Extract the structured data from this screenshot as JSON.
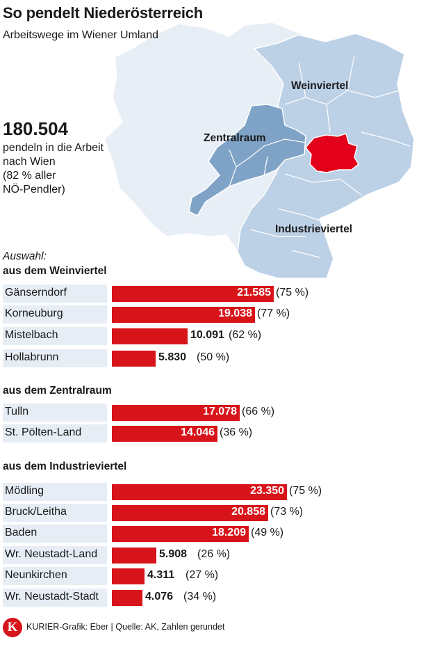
{
  "header": {
    "title": "So pendelt Niederösterreich",
    "subtitle": "Arbeitswege im Wiener Umland"
  },
  "map": {
    "labels": {
      "weinviertel": "Weinviertel",
      "zentralraum": "Zentralraum",
      "industrieviertel": "Industrieviertel"
    },
    "colors": {
      "background_region": "#e8eef6",
      "commuter_region": "#bcd0e6",
      "zentralraum": "#7fa3c6",
      "wien": "#e2001a",
      "border": "#ffffff"
    }
  },
  "summary": {
    "total": "180.504",
    "lines": [
      "pendeln in die Arbeit",
      "nach Wien",
      "(82 % aller",
      "NÖ-Pendler)"
    ]
  },
  "selection_label": "Auswahl:",
  "chart_data": {
    "type": "bar",
    "orientation": "horizontal",
    "bar_color": "#d7141a",
    "groups": [
      {
        "title": "aus dem Weinviertel",
        "rows": [
          {
            "name": "Gänserndorf",
            "value": 21585,
            "value_label": "21.585",
            "pct_label": "(75 %)"
          },
          {
            "name": "Korneuburg",
            "value": 19038,
            "value_label": "19.038",
            "pct_label": "(77 %)"
          },
          {
            "name": "Mistelbach",
            "value": 10091,
            "value_label": "10.091",
            "pct_label": "(62 %)"
          },
          {
            "name": "Hollabrunn",
            "value": 5830,
            "value_label": "5.830",
            "pct_label": "(50 %)"
          }
        ]
      },
      {
        "title": "aus dem Zentralraum",
        "rows": [
          {
            "name": "Tulln",
            "value": 17078,
            "value_label": "17.078",
            "pct_label": "(66 %)"
          },
          {
            "name": "St. Pölten-Land",
            "value": 14046,
            "value_label": "14.046",
            "pct_label": "(36 %)"
          }
        ]
      },
      {
        "title": "aus dem Industrieviertel",
        "rows": [
          {
            "name": "Mödling",
            "value": 23350,
            "value_label": "23.350",
            "pct_label": "(75 %)"
          },
          {
            "name": "Bruck/Leitha",
            "value": 20858,
            "value_label": "20.858",
            "pct_label": "(73 %)"
          },
          {
            "name": "Baden",
            "value": 18209,
            "value_label": "18.209",
            "pct_label": "(49 %)"
          },
          {
            "name": "Wr. Neustadt-Land",
            "value": 5908,
            "value_label": "5.908",
            "pct_label": "(26 %)"
          },
          {
            "name": "Neunkirchen",
            "value": 4311,
            "value_label": "4.311",
            "pct_label": "(27 %)"
          },
          {
            "name": "Wr. Neustadt-Stadt",
            "value": 4076,
            "value_label": "4.076",
            "pct_label": "(34 %)"
          }
        ]
      }
    ]
  },
  "footer": {
    "logo_letter": "K",
    "credit": "KURIER-Grafik: Eber | Quelle: AK, Zahlen gerundet"
  }
}
